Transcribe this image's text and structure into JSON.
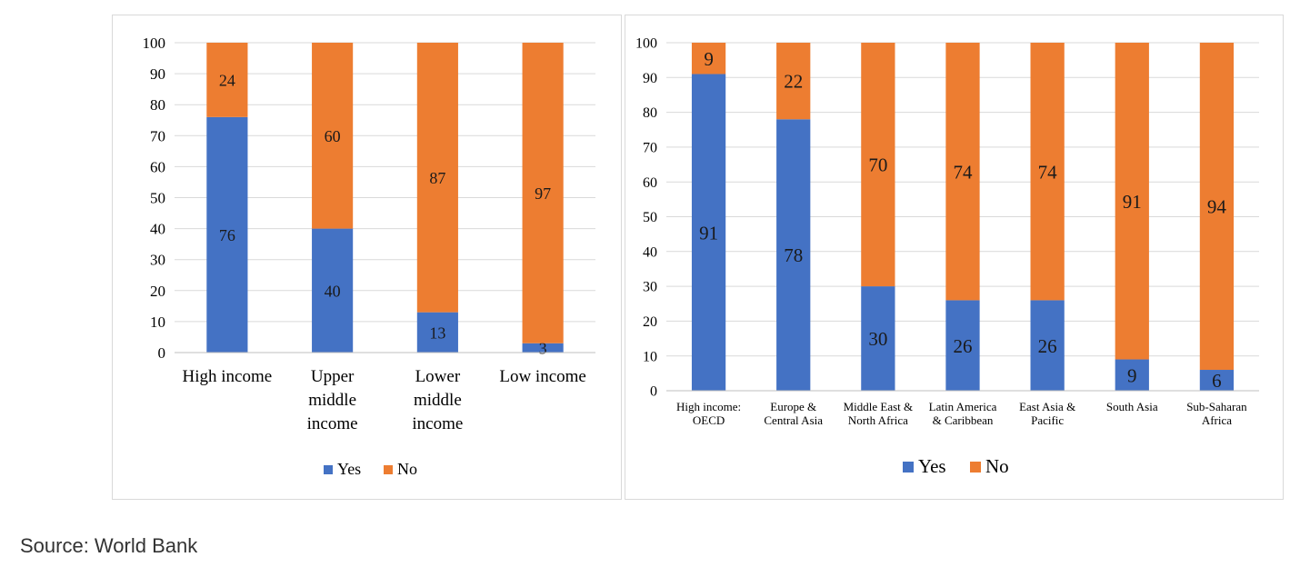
{
  "colors": {
    "yes": "#4472c4",
    "no": "#ed7d31",
    "grid": "#d9d9d9",
    "text": "#000000"
  },
  "source_text": "Source: World Bank",
  "chart_data": [
    {
      "type": "bar",
      "stacked": true,
      "categories": [
        [
          "High income"
        ],
        [
          "Upper",
          "middle",
          "income"
        ],
        [
          "Lower",
          "middle",
          "income"
        ],
        [
          "Low income"
        ]
      ],
      "series": [
        {
          "name": "Yes",
          "values": [
            76,
            40,
            13,
            3
          ]
        },
        {
          "name": "No",
          "values": [
            24,
            60,
            87,
            97
          ]
        }
      ],
      "yticks": [
        0,
        10,
        20,
        30,
        40,
        50,
        60,
        70,
        80,
        90,
        100
      ],
      "ylim": [
        0,
        100
      ],
      "grid": true,
      "legend": "bottom"
    },
    {
      "type": "bar",
      "stacked": true,
      "categories": [
        [
          "High income:",
          "OECD"
        ],
        [
          "Europe &",
          "Central Asia"
        ],
        [
          "Middle East &",
          "North Africa"
        ],
        [
          "Latin America",
          "& Caribbean"
        ],
        [
          "East Asia &",
          "Pacific"
        ],
        [
          "South Asia"
        ],
        [
          "Sub-Saharan",
          "Africa"
        ]
      ],
      "series": [
        {
          "name": "Yes",
          "values": [
            91,
            78,
            30,
            26,
            26,
            9,
            6
          ]
        },
        {
          "name": "No",
          "values": [
            9,
            22,
            70,
            74,
            74,
            91,
            94
          ]
        }
      ],
      "yticks": [
        0,
        10,
        20,
        30,
        40,
        50,
        60,
        70,
        80,
        90,
        100
      ],
      "ylim": [
        0,
        100
      ],
      "grid": true,
      "legend": "bottom"
    }
  ]
}
